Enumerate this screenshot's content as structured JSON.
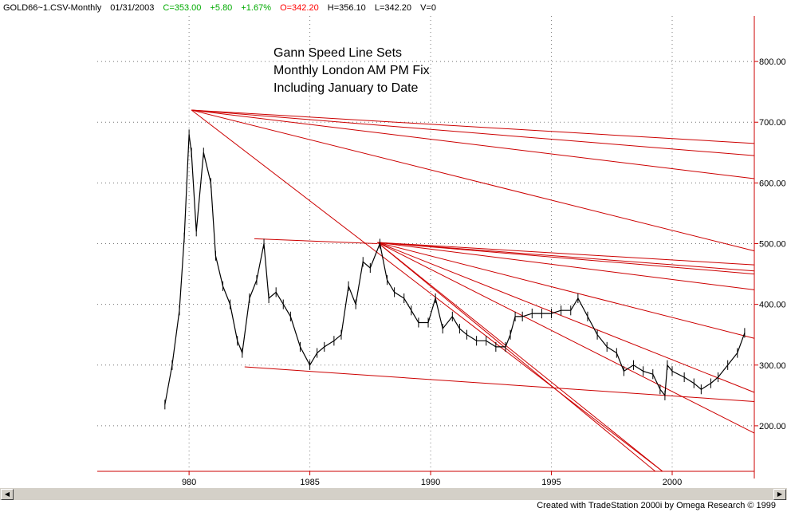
{
  "header": {
    "symbol": "GOLD66~1.CSV-Monthly",
    "date": "01/31/2003",
    "close": "C=353.00",
    "change": "+5.80",
    "pct": "+1.67%",
    "open": "O=342.20",
    "high": "H=356.10",
    "low": "L=342.20",
    "volume": "V=0"
  },
  "colors": {
    "up": "#00aa00",
    "down": "#ff0000",
    "lines": "#cc0000",
    "axis": "#cc0000",
    "price": "#000000"
  },
  "chart_data": {
    "type": "line",
    "title": [
      "Gann Speed Line Sets",
      "Monthly London AM PM Fix",
      "Including January to Date"
    ],
    "x_tick_labels": [
      "980",
      "1985",
      "1990",
      "1995",
      "2000"
    ],
    "x_tick_years": [
      1980,
      1985,
      1990,
      1995,
      2000
    ],
    "xlim": [
      1976.2,
      2003.4
    ],
    "y_tick_labels": [
      "200.00",
      "300.00",
      "400.00",
      "500.00",
      "600.00",
      "700.00",
      "800.00"
    ],
    "y_ticks": [
      200,
      300,
      400,
      500,
      600,
      700,
      800
    ],
    "ylim": [
      125,
      875
    ],
    "grid": true,
    "series": [
      {
        "type": "monthly-price",
        "x": [
          1979.0,
          1979.3,
          1979.6,
          1979.8,
          1980.0,
          1980.1,
          1980.3,
          1980.6,
          1980.9,
          1981.1,
          1981.4,
          1981.7,
          1982.0,
          1982.2,
          1982.5,
          1982.8,
          1983.1,
          1983.3,
          1983.6,
          1983.9,
          1984.2,
          1984.6,
          1985.0,
          1985.3,
          1985.6,
          1986.0,
          1986.3,
          1986.6,
          1986.9,
          1987.2,
          1987.5,
          1987.9,
          1988.2,
          1988.5,
          1988.9,
          1989.2,
          1989.5,
          1989.9,
          1990.2,
          1990.5,
          1990.9,
          1991.2,
          1991.5,
          1991.9,
          1992.3,
          1992.7,
          1993.1,
          1993.3,
          1993.5,
          1993.8,
          1994.2,
          1994.6,
          1995.0,
          1995.4,
          1995.8,
          1996.1,
          1996.5,
          1996.9,
          1997.3,
          1997.7,
          1998.0,
          1998.4,
          1998.8,
          1999.2,
          1999.5,
          1999.7,
          1999.8,
          2000.0,
          2000.5,
          2000.9,
          2001.2,
          2001.6,
          2001.9,
          2002.3,
          2002.7,
          2003.0
        ],
        "y": [
          235,
          300,
          390,
          510,
          680,
          650,
          520,
          650,
          600,
          480,
          430,
          400,
          340,
          320,
          410,
          440,
          500,
          410,
          420,
          400,
          380,
          330,
          300,
          320,
          330,
          340,
          350,
          430,
          400,
          470,
          460,
          500,
          440,
          420,
          410,
          390,
          370,
          370,
          410,
          360,
          380,
          360,
          350,
          340,
          340,
          330,
          330,
          350,
          380,
          380,
          385,
          385,
          385,
          390,
          390,
          410,
          380,
          350,
          330,
          320,
          290,
          300,
          290,
          285,
          260,
          250,
          300,
          290,
          280,
          270,
          260,
          270,
          280,
          300,
          320,
          353
        ]
      }
    ],
    "gann_lines": [
      {
        "from": [
          1980.1,
          720
        ],
        "to": [
          2003.4,
          665
        ]
      },
      {
        "from": [
          1980.1,
          720
        ],
        "to": [
          2003.4,
          645
        ]
      },
      {
        "from": [
          1980.1,
          720
        ],
        "to": [
          2003.4,
          607
        ]
      },
      {
        "from": [
          1980.1,
          720
        ],
        "to": [
          2003.4,
          488
        ]
      },
      {
        "from": [
          1980.1,
          720
        ],
        "to": [
          1999.6,
          125
        ]
      },
      {
        "from": [
          1982.7,
          508
        ],
        "to": [
          1987.8,
          500
        ]
      },
      {
        "from": [
          1982.3,
          297
        ],
        "to": [
          2003.4,
          240
        ]
      },
      {
        "from": [
          1987.8,
          502
        ],
        "to": [
          2003.4,
          465
        ]
      },
      {
        "from": [
          1987.8,
          502
        ],
        "to": [
          2003.4,
          455
        ]
      },
      {
        "from": [
          1987.8,
          502
        ],
        "to": [
          2003.4,
          450
        ]
      },
      {
        "from": [
          1987.8,
          502
        ],
        "to": [
          2003.4,
          424
        ]
      },
      {
        "from": [
          1987.8,
          502
        ],
        "to": [
          2003.4,
          344
        ]
      },
      {
        "from": [
          1987.8,
          502
        ],
        "to": [
          2003.4,
          255
        ]
      },
      {
        "from": [
          1987.8,
          502
        ],
        "to": [
          2003.4,
          188
        ]
      },
      {
        "from": [
          1987.8,
          502
        ],
        "to": [
          1999.3,
          125
        ]
      },
      {
        "from": [
          1987.8,
          502
        ],
        "to": [
          1999.6,
          125
        ]
      }
    ]
  },
  "footer": "Created with TradeStation 2000i by Omega Research © 1999"
}
